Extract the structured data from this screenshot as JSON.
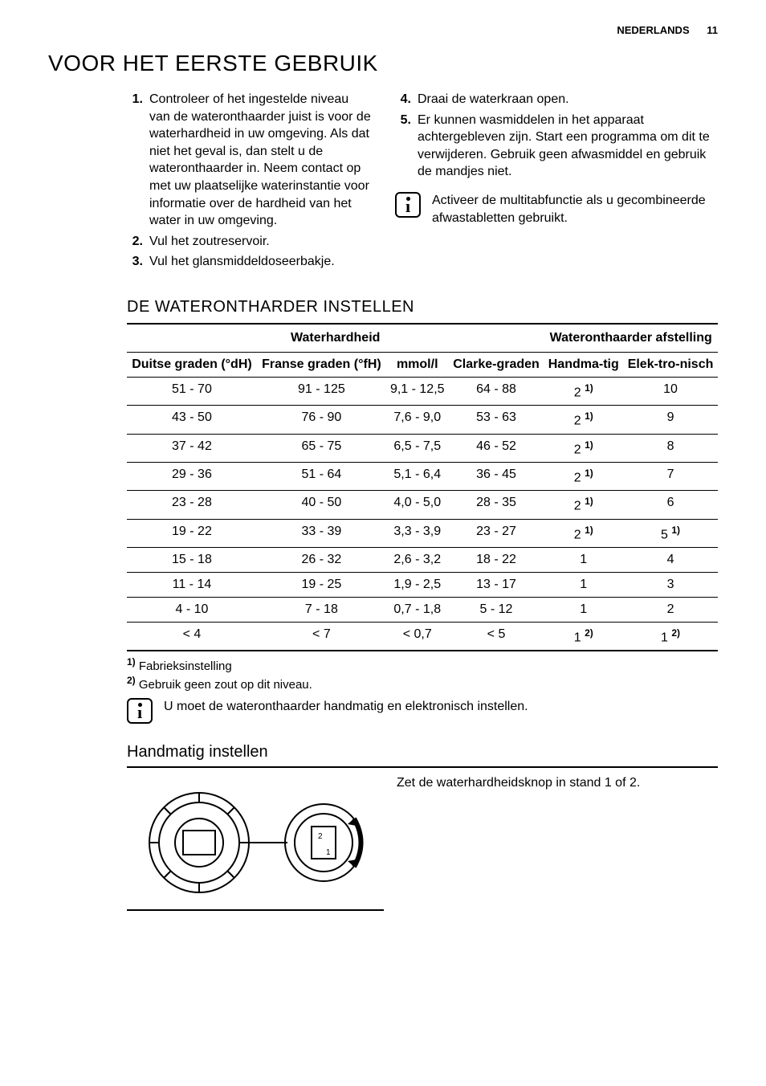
{
  "header": {
    "language": "NEDERLANDS",
    "page_number": "11"
  },
  "title": "VOOR HET EERSTE GEBRUIK",
  "steps_left": [
    {
      "n": "1.",
      "t": "Controleer of het ingestelde niveau van de wateronthaarder juist is voor de waterhardheid in uw omgeving. Als dat niet het geval is, dan stelt u de wateronthaarder in. Neem contact op met uw plaatselijke waterinstantie voor informatie over de hardheid van het water in uw omgeving."
    },
    {
      "n": "2.",
      "t": "Vul het zoutreservoir."
    },
    {
      "n": "3.",
      "t": "Vul het glansmiddeldoseerbakje."
    }
  ],
  "steps_right": [
    {
      "n": "4.",
      "t": "Draai de waterkraan open."
    },
    {
      "n": "5.",
      "t": "Er kunnen wasmiddelen in het apparaat achtergebleven zijn. Start een programma om dit te verwijderen. Gebruik geen afwasmiddel en gebruik de mandjes niet."
    }
  ],
  "tip1": "Activeer de multitabfunctie als u gecombineerde afwastabletten gebruikt.",
  "section2_title": "DE WATERONTHARDER INSTELLEN",
  "table": {
    "group1": "Waterhardheid",
    "group2": "Wateronthaarder afstelling",
    "headers": [
      "Duitse graden (°dH)",
      "Franse graden (°fH)",
      "mmol/l",
      "Clarke-graden",
      "Handma-tig",
      "Elek-tro-nisch"
    ],
    "rows": [
      {
        "c": [
          "51 - 70",
          "91 - 125",
          "9,1 - 12,5",
          "64 - 88"
        ],
        "m": "2",
        "ms": "1)",
        "e": "10",
        "es": ""
      },
      {
        "c": [
          "43 - 50",
          "76 - 90",
          "7,6 - 9,0",
          "53 - 63"
        ],
        "m": "2",
        "ms": "1)",
        "e": "9",
        "es": ""
      },
      {
        "c": [
          "37 - 42",
          "65 - 75",
          "6,5 - 7,5",
          "46 - 52"
        ],
        "m": "2",
        "ms": "1)",
        "e": "8",
        "es": ""
      },
      {
        "c": [
          "29 - 36",
          "51 - 64",
          "5,1 - 6,4",
          "36 - 45"
        ],
        "m": "2",
        "ms": "1)",
        "e": "7",
        "es": ""
      },
      {
        "c": [
          "23 - 28",
          "40 - 50",
          "4,0 - 5,0",
          "28 - 35"
        ],
        "m": "2",
        "ms": "1)",
        "e": "6",
        "es": ""
      },
      {
        "c": [
          "19 - 22",
          "33 - 39",
          "3,3 - 3,9",
          "23 - 27"
        ],
        "m": "2",
        "ms": "1)",
        "e": "5",
        "es": "1)"
      },
      {
        "c": [
          "15 - 18",
          "26 - 32",
          "2,6 - 3,2",
          "18 - 22"
        ],
        "m": "1",
        "ms": "",
        "e": "4",
        "es": ""
      },
      {
        "c": [
          "11 - 14",
          "19 - 25",
          "1,9 - 2,5",
          "13 - 17"
        ],
        "m": "1",
        "ms": "",
        "e": "3",
        "es": ""
      },
      {
        "c": [
          "4 - 10",
          "7 - 18",
          "0,7 - 1,8",
          "5 - 12"
        ],
        "m": "1",
        "ms": "",
        "e": "2",
        "es": ""
      },
      {
        "c": [
          "< 4",
          "< 7",
          "< 0,7",
          "< 5"
        ],
        "m": "1",
        "ms": "2)",
        "e": "1",
        "es": "2)"
      }
    ]
  },
  "footnotes": [
    {
      "n": "1)",
      "t": "Fabrieksinstelling"
    },
    {
      "n": "2)",
      "t": "Gebruik geen zout op dit niveau."
    }
  ],
  "tip2": "U moet de wateronthaarder handmatig en elektronisch instellen.",
  "section3_title": "Handmatig instellen",
  "manual_text": "Zet de waterhardheidsknop in stand 1 of 2."
}
